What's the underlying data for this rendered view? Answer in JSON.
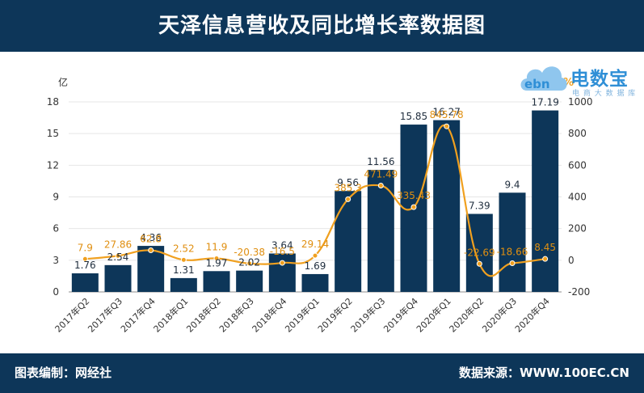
{
  "header": {
    "title": "天泽信息营收及同比增长率数据图"
  },
  "footer": {
    "credit": "图表编制：网经社",
    "source": "数据来源：WWW.100EC.CN"
  },
  "logo": {
    "brand": "电数宝",
    "tagline": "电 商 大 数 据 库",
    "badge": "ebn"
  },
  "colors": {
    "header_bg": "#0d3659",
    "bar": "#0d3659",
    "line": "#f0a01f",
    "label_line": "#e08f10"
  },
  "chart_data": {
    "type": "bar",
    "categories": [
      "2017年Q2",
      "2017年Q3",
      "2017年Q4",
      "2018年Q1",
      "2018年Q2",
      "2018年Q3",
      "2018年Q4",
      "2019年Q1",
      "2019年Q2",
      "2019年Q3",
      "2019年Q4",
      "2020年Q1",
      "2020年Q2",
      "2020年Q3",
      "2020年Q4"
    ],
    "series": [
      {
        "kind": "bar",
        "axis": "left",
        "values": [
          1.76,
          2.54,
          4.36,
          1.31,
          1.97,
          2.02,
          3.64,
          1.69,
          9.56,
          11.56,
          15.85,
          16.27,
          7.39,
          9.4,
          17.19
        ],
        "labels": [
          "1.76",
          "2.54",
          "4.36",
          "1.31",
          "1.97",
          "2.02",
          "3.64",
          "1.69",
          "9.56",
          "11.56",
          "15.85",
          "16.27",
          "7.39",
          "9.4",
          "17.19"
        ]
      },
      {
        "kind": "line",
        "axis": "right",
        "values": [
          7.9,
          27.86,
          62.8,
          2.52,
          11.9,
          -20.38,
          -16.5,
          29.14,
          385.3,
          471.49,
          335.43,
          845.78,
          -22.69,
          -18.66,
          8.45
        ],
        "labels": [
          "7.9",
          "27.86",
          "62.8",
          "2.52",
          "11.9",
          "-20.38",
          "-16.5",
          "29.14",
          "385.3",
          "471.49",
          "335.43",
          "845.78",
          "-22.69",
          "-18.66",
          "8.45"
        ]
      }
    ],
    "y_left": {
      "unit": "亿",
      "min": 0,
      "max": 18,
      "ticks": [
        "0",
        "3",
        "6",
        "9",
        "12",
        "15",
        "18"
      ]
    },
    "y_right": {
      "unit": "%",
      "min": -200,
      "max": 1000,
      "ticks": [
        "-200",
        "0",
        "200",
        "400",
        "600",
        "800",
        "1000"
      ]
    },
    "grid": true,
    "legend": "none"
  }
}
